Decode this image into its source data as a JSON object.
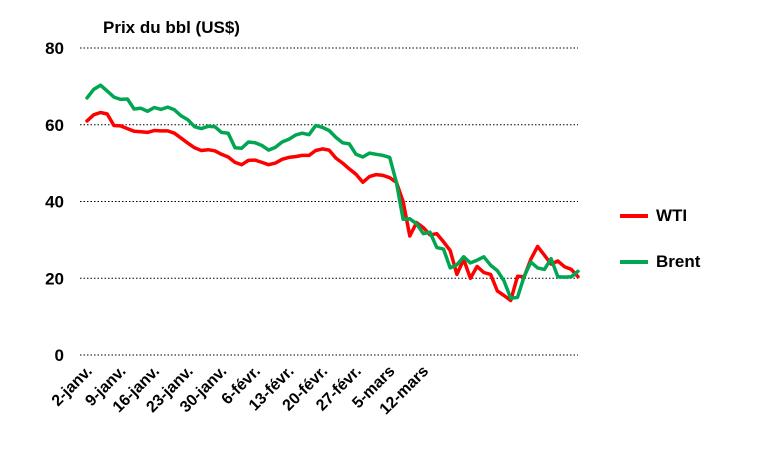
{
  "chart_data": {
    "type": "line",
    "title": "Prix du bbl  (US$)",
    "xlabel": "",
    "ylabel": "",
    "ylim": [
      0,
      80
    ],
    "yticks": [
      0,
      20,
      40,
      60,
      80
    ],
    "grid": true,
    "legend": "right",
    "x_labels": [
      "2-janv.",
      "9-janv.",
      "16-janv.",
      "23-janv.",
      "30-janv.",
      "6-févr.",
      "13-févr.",
      "20-févr.",
      "27-févr.",
      "5-mars",
      "12-mars"
    ],
    "series": [
      {
        "name": "WTI",
        "color": "#ff0000",
        "values": [
          61.0,
          62.6,
          63.2,
          62.8,
          59.8,
          59.7,
          59.0,
          58.3,
          58.2,
          58.0,
          58.5,
          58.4,
          58.4,
          57.8,
          56.5,
          55.2,
          54.0,
          53.3,
          53.5,
          53.2,
          52.3,
          51.6,
          50.2,
          49.6,
          50.7,
          50.8,
          50.2,
          49.6,
          50.0,
          51.0,
          51.5,
          51.7,
          52.0,
          52.0,
          53.3,
          53.7,
          53.4,
          51.3,
          50.0,
          48.5,
          47.1,
          45.0,
          46.5,
          47.0,
          46.8,
          46.2,
          45.0,
          40.0,
          31.0,
          34.5,
          33.2,
          31.3,
          31.6,
          29.5,
          27.2,
          21.0,
          24.9,
          20.0,
          23.1,
          21.5,
          21.0,
          16.7,
          15.5,
          14.2,
          20.5,
          20.4,
          25.0,
          28.3,
          26.0,
          23.7,
          24.5,
          23.0,
          22.3,
          20.4
        ]
      },
      {
        "name": "Brent",
        "color": "#00a651",
        "values": [
          67.0,
          69.2,
          70.3,
          68.8,
          67.2,
          66.6,
          66.7,
          64.1,
          64.3,
          63.5,
          64.5,
          64.0,
          64.6,
          63.9,
          62.3,
          61.3,
          59.5,
          59.0,
          59.6,
          59.5,
          58.0,
          57.8,
          54.0,
          53.9,
          55.5,
          55.3,
          54.6,
          53.4,
          54.1,
          55.5,
          56.2,
          57.3,
          57.8,
          57.4,
          59.8,
          59.3,
          58.5,
          56.7,
          55.3,
          55.0,
          52.3,
          51.6,
          52.6,
          52.3,
          52.0,
          51.5,
          45.0,
          35.4,
          35.5,
          34.2,
          31.6,
          32.0,
          28.0,
          27.6,
          22.7,
          23.5,
          25.6,
          24.0,
          24.7,
          25.6,
          23.4,
          22.0,
          19.3,
          14.8,
          15.0,
          20.5,
          24.2,
          22.7,
          22.3,
          25.1,
          20.4,
          20.3,
          20.4,
          21.8
        ]
      }
    ]
  }
}
